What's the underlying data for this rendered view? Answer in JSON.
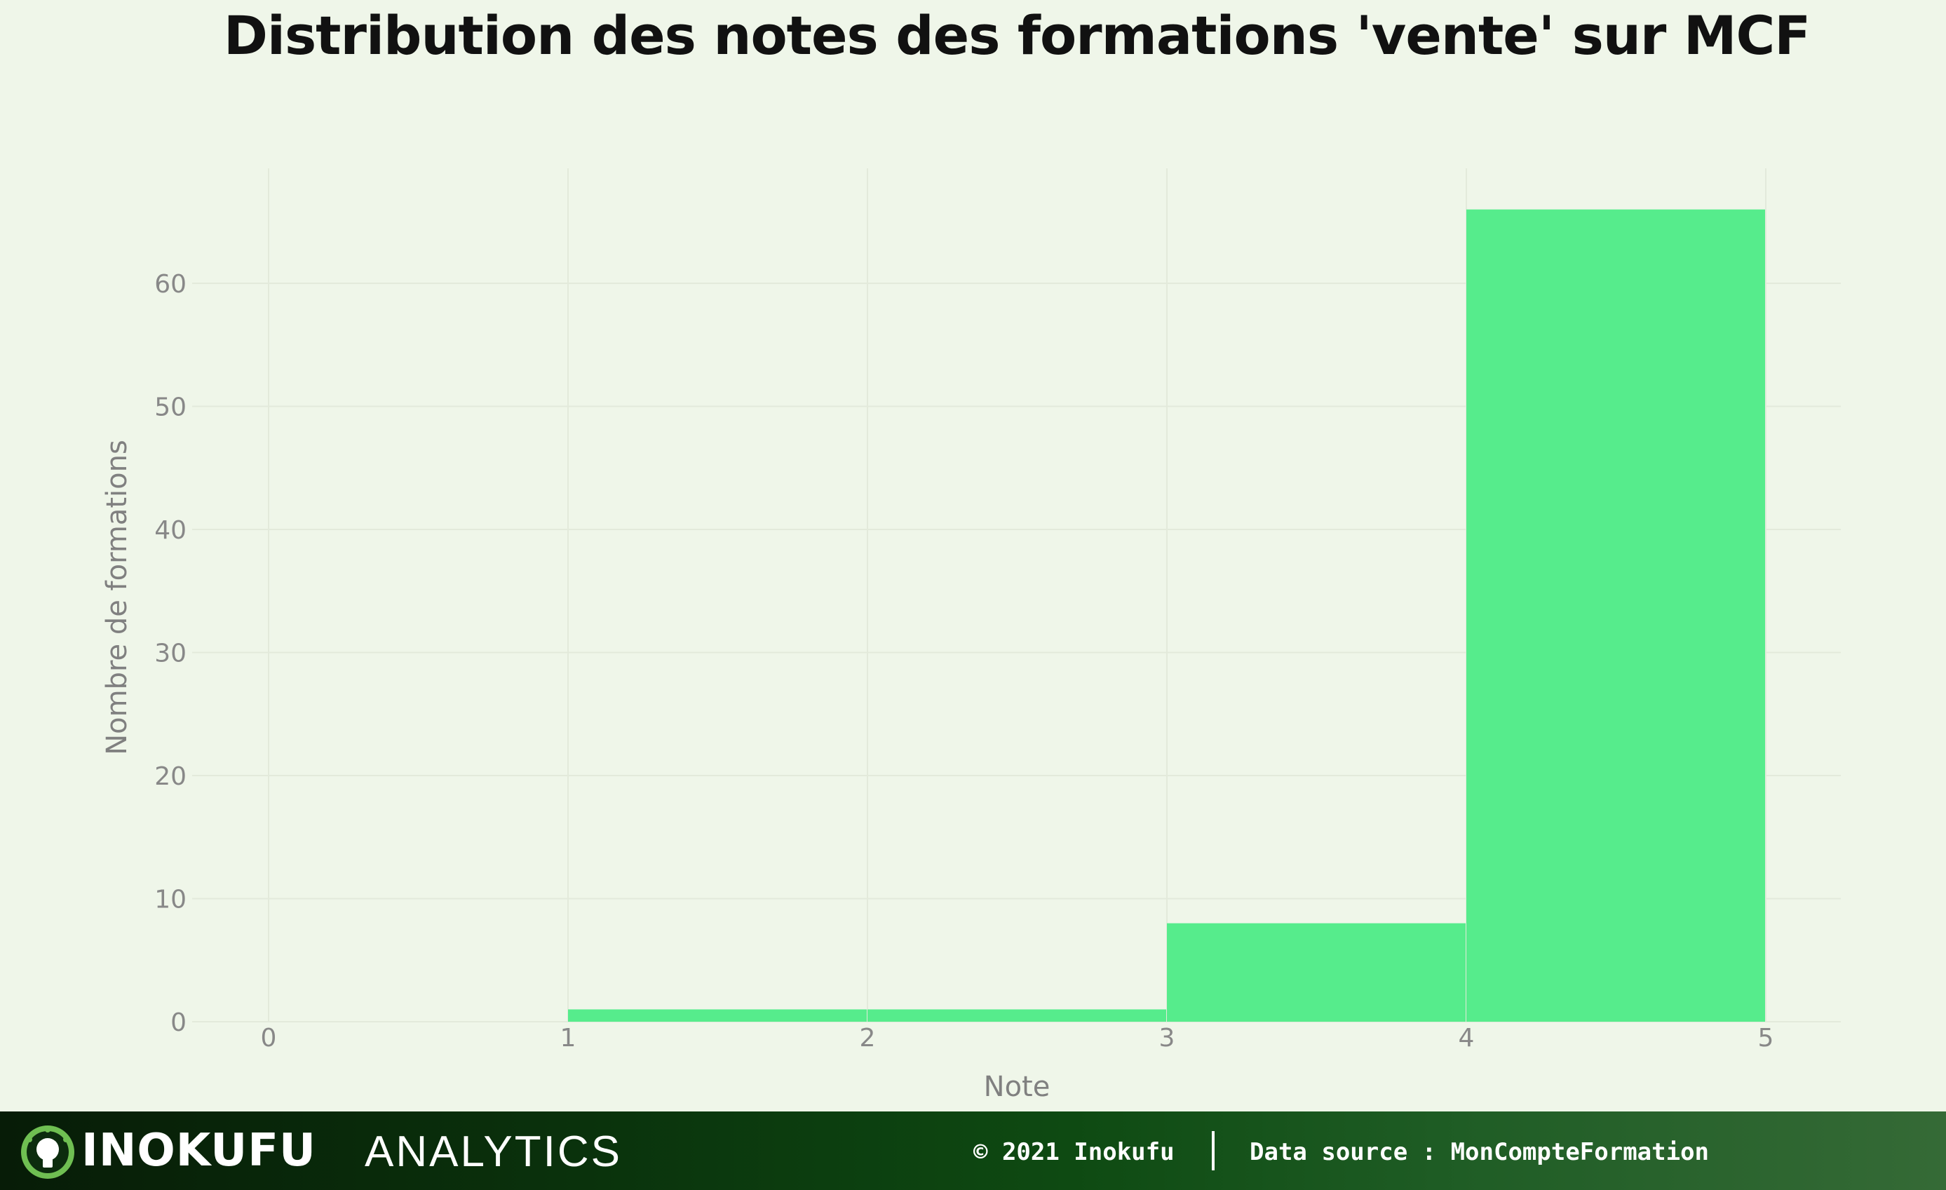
{
  "chart_data": {
    "type": "bar",
    "title": "Distribution des notes des formations 'vente' sur MCF",
    "xlabel": "Note",
    "ylabel": "Nombre de formations",
    "xlim": [
      -0.25,
      5.25
    ],
    "ylim": [
      0,
      69
    ],
    "x_ticks": [
      "0",
      "1",
      "2",
      "3",
      "4",
      "5"
    ],
    "y_ticks": [
      "0",
      "10",
      "20",
      "30",
      "40",
      "50",
      "60"
    ],
    "bins": [
      {
        "from": 1,
        "to": 2,
        "value": 1
      },
      {
        "from": 2,
        "to": 3,
        "value": 1
      },
      {
        "from": 3,
        "to": 4,
        "value": 8
      },
      {
        "from": 4,
        "to": 5,
        "value": 66
      }
    ],
    "bar_color": "#56ec8c",
    "grid": true,
    "legend": "none"
  },
  "footer": {
    "brand": "INOKUFU",
    "brand_sub": "ANALYTICS",
    "copyright": "© 2021 Inokufu",
    "source": "Data source : MonCompteFormation"
  }
}
